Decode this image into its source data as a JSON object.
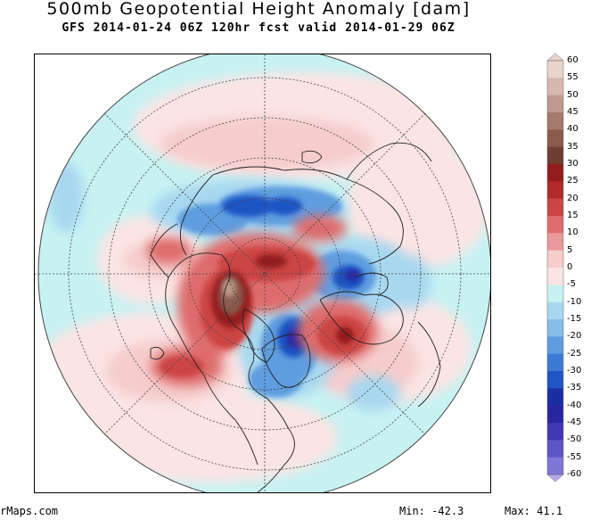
{
  "header": {
    "title": "500mb Geopotential Height Anomaly [dam]",
    "subtitle": "GFS 2014-01-24 06Z 120hr fcst valid 2014-01-29 06Z"
  },
  "footer": {
    "source": "rMaps.com",
    "min_label": "Min:",
    "min_value": "-42.3",
    "max_label": "Max:",
    "max_value": "41.1"
  },
  "colorbar": {
    "labels": [
      "60",
      "55",
      "50",
      "45",
      "40",
      "35",
      "30",
      "25",
      "20",
      "15",
      "10",
      "5",
      "0",
      "-5",
      "-10",
      "-15",
      "-20",
      "-25",
      "-30",
      "-35",
      "-40",
      "-45",
      "-50",
      "-55",
      "-60"
    ],
    "colors": [
      "#e8d4cc",
      "#d6b8ae",
      "#bf9a8d",
      "#a57a6c",
      "#8a5b4d",
      "#6e3e33",
      "#941c1c",
      "#b32a2a",
      "#cc4444",
      "#de6c6c",
      "#ea9a9a",
      "#f6cccc",
      "#fbe4e4",
      "#c8f2f2",
      "#a8d8f0",
      "#86bde8",
      "#5e9de0",
      "#3c7ad6",
      "#1f55c4",
      "#1a2fa3",
      "#2a26a0",
      "#3f37b4",
      "#5e55c8",
      "#8076d8",
      "#b3a8ec"
    ]
  },
  "map": {
    "projection": "north-polar-stereographic",
    "field": "500mb geopotential height anomaly",
    "extremes": {
      "min": -42.3,
      "max": 41.1
    }
  }
}
